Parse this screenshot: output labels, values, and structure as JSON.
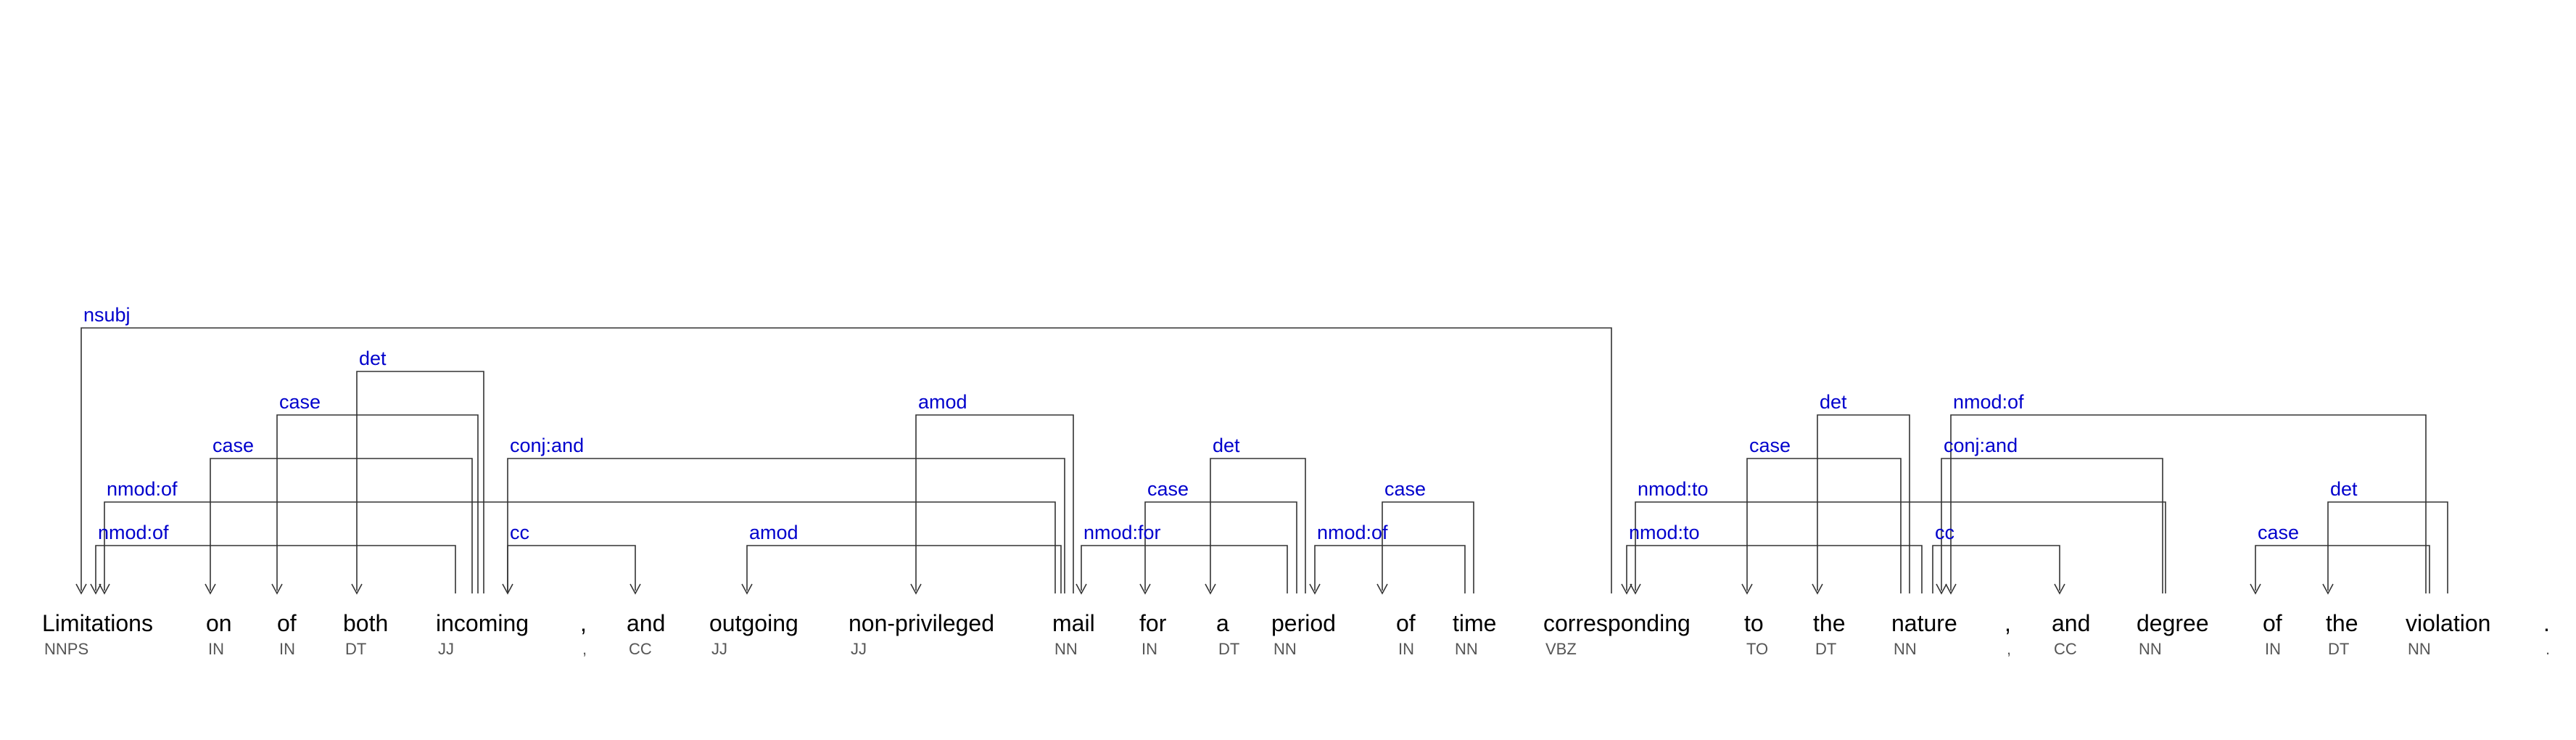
{
  "tokens": [
    {
      "word": "Limitations",
      "tag": "NNPS"
    },
    {
      "word": "on",
      "tag": "IN"
    },
    {
      "word": "of",
      "tag": "IN"
    },
    {
      "word": "both",
      "tag": "DT"
    },
    {
      "word": "incoming",
      "tag": "JJ"
    },
    {
      "word": ",",
      "tag": ","
    },
    {
      "word": "and",
      "tag": "CC"
    },
    {
      "word": "outgoing",
      "tag": "JJ"
    },
    {
      "word": "non-privileged",
      "tag": "JJ"
    },
    {
      "word": "mail",
      "tag": "NN"
    },
    {
      "word": "for",
      "tag": "IN"
    },
    {
      "word": "a",
      "tag": "DT"
    },
    {
      "word": "period",
      "tag": "NN"
    },
    {
      "word": "of",
      "tag": "IN"
    },
    {
      "word": "time",
      "tag": "NN"
    },
    {
      "word": "corresponding",
      "tag": "VBZ"
    },
    {
      "word": "to",
      "tag": "TO"
    },
    {
      "word": "the",
      "tag": "DT"
    },
    {
      "word": "nature",
      "tag": "NN"
    },
    {
      "word": ",",
      "tag": ","
    },
    {
      "word": "and",
      "tag": "CC"
    },
    {
      "word": "degree",
      "tag": "NN"
    },
    {
      "word": "of",
      "tag": "IN"
    },
    {
      "word": "the",
      "tag": "DT"
    },
    {
      "word": "violation",
      "tag": "NN"
    },
    {
      "word": ".",
      "tag": "."
    }
  ],
  "arcs": [
    {
      "label": "nsubj",
      "from": 15,
      "to": 0
    },
    {
      "label": "det",
      "from": 4,
      "to": 3
    },
    {
      "label": "case",
      "from": 4,
      "to": 2
    },
    {
      "label": "amod",
      "from": 9,
      "to": 8
    },
    {
      "label": "det",
      "from": 18,
      "to": 17
    },
    {
      "label": "nmod:of",
      "from": 24,
      "to": 21
    },
    {
      "label": "case",
      "from": 4,
      "to": 1
    },
    {
      "label": "conj:and",
      "from": 9,
      "to": 4
    },
    {
      "label": "det",
      "from": 12,
      "to": 11
    },
    {
      "label": "case",
      "from": 18,
      "to": 16
    },
    {
      "label": "conj:and",
      "from": 21,
      "to": 18
    },
    {
      "label": "nmod:of",
      "from": 9,
      "to": 0
    },
    {
      "label": "case",
      "from": 12,
      "to": 10
    },
    {
      "label": "case",
      "from": 14,
      "to": 13
    },
    {
      "label": "nmod:to",
      "from": 21,
      "to": 15
    },
    {
      "label": "det",
      "from": 24,
      "to": 23
    },
    {
      "label": "nmod:of",
      "from": 4,
      "to": 0
    },
    {
      "label": "cc",
      "from": 7,
      "to": 6
    },
    {
      "label": "amod",
      "from": 9,
      "to": 7
    },
    {
      "label": "nmod:for",
      "from": 12,
      "to": 9
    },
    {
      "label": "nmod:of",
      "from": 14,
      "to": 12
    },
    {
      "label": "nmod:to",
      "from": 18,
      "to": 15
    },
    {
      "label": "cc",
      "from": 21,
      "to": 20
    },
    {
      "label": "case",
      "from": 24,
      "to": 22
    }
  ]
}
